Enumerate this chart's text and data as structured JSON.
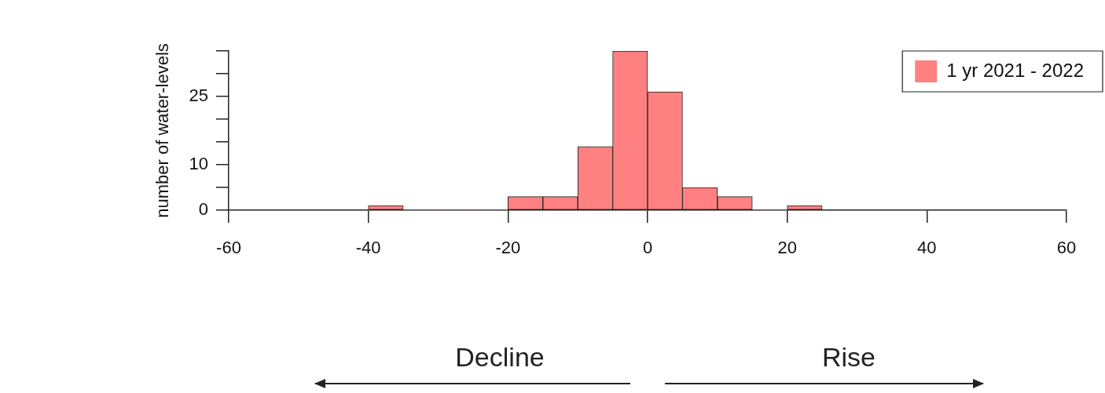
{
  "chart_data": {
    "type": "histogram",
    "ylabel": "number of water-levels",
    "bins": [
      -40,
      -35,
      -30,
      -25,
      -20,
      -15,
      -10,
      -5,
      0,
      5,
      10,
      15,
      20,
      25
    ],
    "series": [
      {
        "name": "1 yr 2021 - 2022",
        "color": "#ff8080",
        "values": [
          1,
          0,
          0,
          0,
          3,
          3,
          14,
          35,
          26,
          5,
          3,
          0,
          1
        ]
      }
    ],
    "xlim": [
      -60,
      60
    ],
    "xticks": [
      -60,
      -40,
      -20,
      0,
      20,
      40,
      60
    ],
    "ylim": [
      0,
      35
    ],
    "yticks": [
      0,
      {
        "value": 5,
        "label": null
      },
      10,
      {
        "value": 15,
        "label": null
      },
      {
        "value": 20,
        "label": null
      },
      25,
      {
        "value": 30,
        "label": null
      },
      {
        "value": 35,
        "label": null
      }
    ],
    "legend": "top right",
    "annotations": [
      "Decline",
      "Rise"
    ]
  }
}
